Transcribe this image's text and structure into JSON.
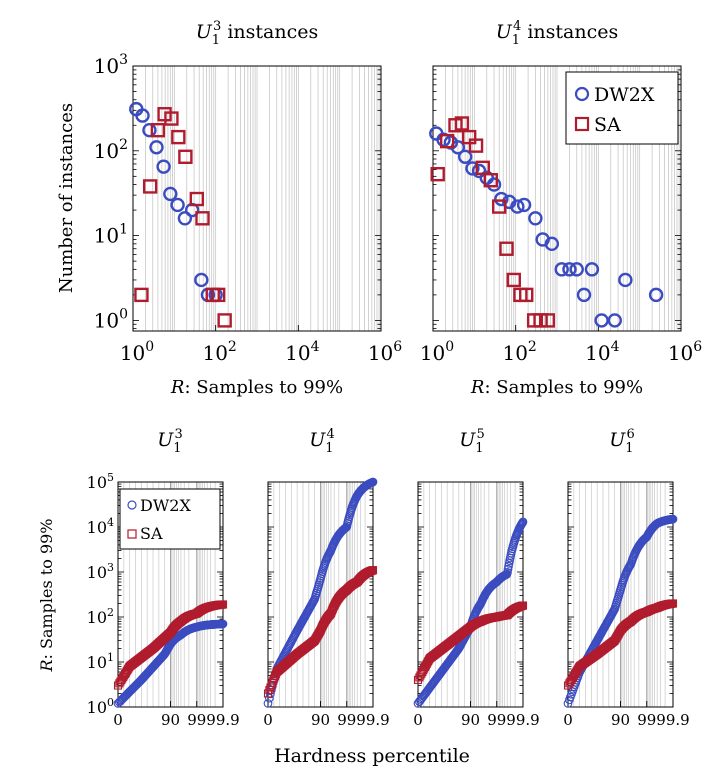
{
  "colors": {
    "dw2x": "#3b4cc0",
    "sa": "#b01c2e",
    "grid": "#c8c8c8",
    "axis": "#000000"
  },
  "chart_data": [
    {
      "id": "hist_u13",
      "type": "scatter",
      "title": {
        "base": "U",
        "sub": "1",
        "sup": "3",
        "suffix": " instances"
      },
      "xlabel": {
        "var": "R",
        "text": ": Samples to 99%"
      },
      "ylabel": "Number of instances",
      "xscale": "log",
      "yscale": "log",
      "xlim": [
        1,
        1000000
      ],
      "ylim": [
        0.75,
        1000
      ],
      "xticks": [
        {
          "value": 1,
          "base": "10",
          "exp": "0"
        },
        {
          "value": 100,
          "base": "10",
          "exp": "2"
        },
        {
          "value": 10000,
          "base": "10",
          "exp": "4"
        },
        {
          "value": 1000000,
          "base": "10",
          "exp": "6"
        }
      ],
      "yticks": [
        {
          "value": 1,
          "base": "10",
          "exp": "0"
        },
        {
          "value": 10,
          "base": "10",
          "exp": "1"
        },
        {
          "value": 100,
          "base": "10",
          "exp": "2"
        },
        {
          "value": 1000,
          "base": "10",
          "exp": "3"
        }
      ],
      "series": [
        {
          "name": "DW2X",
          "marker": "circle",
          "points": [
            [
              1.2,
              310
            ],
            [
              1.7,
              260
            ],
            [
              2.5,
              175
            ],
            [
              3.7,
              110
            ],
            [
              5.5,
              65
            ],
            [
              8,
              31
            ],
            [
              12,
              23
            ],
            [
              18,
              16
            ],
            [
              27,
              20
            ],
            [
              45,
              3
            ],
            [
              65,
              2
            ],
            [
              100,
              2
            ]
          ]
        },
        {
          "name": "SA",
          "marker": "square",
          "points": [
            [
              1.6,
              2
            ],
            [
              2.6,
              38
            ],
            [
              4,
              175
            ],
            [
              5.8,
              270
            ],
            [
              8.5,
              240
            ],
            [
              12.5,
              145
            ],
            [
              18.5,
              85
            ],
            [
              35,
              27
            ],
            [
              48,
              16
            ],
            [
              85,
              2
            ],
            [
              115,
              2
            ],
            [
              165,
              1
            ]
          ]
        }
      ]
    },
    {
      "id": "hist_u14",
      "type": "scatter",
      "title": {
        "base": "U",
        "sub": "1",
        "sup": "4",
        "suffix": " instances"
      },
      "xlabel": {
        "var": "R",
        "text": ": Samples to 99%"
      },
      "ylabel": "",
      "xscale": "log",
      "yscale": "log",
      "xlim": [
        1,
        1000000
      ],
      "ylim": [
        0.75,
        1000
      ],
      "legend": {
        "position": "top-right",
        "entries": [
          "DW2X",
          "SA"
        ]
      },
      "xticks": [
        {
          "value": 1,
          "base": "10",
          "exp": "0"
        },
        {
          "value": 100,
          "base": "10",
          "exp": "2"
        },
        {
          "value": 10000,
          "base": "10",
          "exp": "4"
        },
        {
          "value": 1000000,
          "base": "10",
          "exp": "6"
        }
      ],
      "yticks": [],
      "series": [
        {
          "name": "DW2X",
          "marker": "circle",
          "points": [
            [
              1.2,
              160
            ],
            [
              1.8,
              135
            ],
            [
              2.7,
              125
            ],
            [
              4,
              110
            ],
            [
              6,
              85
            ],
            [
              9,
              62
            ],
            [
              13,
              58
            ],
            [
              20,
              48
            ],
            [
              30,
              40
            ],
            [
              45,
              27
            ],
            [
              70,
              25
            ],
            [
              110,
              22
            ],
            [
              160,
              23
            ],
            [
              300,
              16
            ],
            [
              450,
              9
            ],
            [
              750,
              8
            ],
            [
              1300,
              4
            ],
            [
              2000,
              4
            ],
            [
              3000,
              4
            ],
            [
              4500,
              2
            ],
            [
              7000,
              4
            ],
            [
              12000,
              1
            ],
            [
              25000,
              1
            ],
            [
              45000,
              3
            ],
            [
              250000,
              2
            ]
          ]
        },
        {
          "name": "SA",
          "marker": "square",
          "points": [
            [
              1.3,
              53
            ],
            [
              2.2,
              130
            ],
            [
              3.5,
              200
            ],
            [
              5,
              210
            ],
            [
              7.5,
              145
            ],
            [
              11,
              115
            ],
            [
              16,
              63
            ],
            [
              25,
              45
            ],
            [
              40,
              22
            ],
            [
              60,
              7
            ],
            [
              90,
              3
            ],
            [
              130,
              2
            ],
            [
              180,
              2
            ],
            [
              280,
              1
            ],
            [
              400,
              1
            ],
            [
              600,
              1
            ]
          ]
        }
      ]
    },
    {
      "id": "pct_u13",
      "type": "scatter",
      "title": {
        "base": "U",
        "sub": "1",
        "sup": "3"
      },
      "xlabel": "",
      "ylabel": {
        "var": "R",
        "text": ": Samples to 99%"
      },
      "xscale": "hardness-percentile",
      "yscale": "log",
      "xlim": [
        0,
        99.9
      ],
      "ylim": [
        1,
        100000
      ],
      "legend": {
        "position": "top-right",
        "entries": [
          "DW2X",
          "SA"
        ]
      },
      "xticks": [
        {
          "value": 0,
          "label": "0"
        },
        {
          "value": 90,
          "label": "90"
        },
        {
          "value": 99,
          "label": "99"
        },
        {
          "value": 99.9,
          "label": "99.9"
        }
      ],
      "yticks": [
        {
          "value": 1,
          "base": "10",
          "exp": "0"
        },
        {
          "value": 10,
          "base": "10",
          "exp": "1"
        },
        {
          "value": 100,
          "base": "10",
          "exp": "2"
        },
        {
          "value": 1000,
          "base": "10",
          "exp": "3"
        },
        {
          "value": 10000,
          "base": "10",
          "exp": "4"
        },
        {
          "value": 100000,
          "base": "10",
          "exp": "5"
        }
      ],
      "series": [
        {
          "name": "DW2X",
          "marker": "circle",
          "anchors": [
            [
              0,
              1.2
            ],
            [
              40,
              4
            ],
            [
              80,
              15
            ],
            [
              90,
              25
            ],
            [
              96,
              40
            ],
            [
              99,
              60
            ],
            [
              99.9,
              70
            ]
          ]
        },
        {
          "name": "SA",
          "marker": "square",
          "anchors": [
            [
              0,
              3
            ],
            [
              20,
              8
            ],
            [
              60,
              20
            ],
            [
              90,
              45
            ],
            [
              96,
              80
            ],
            [
              99,
              120
            ],
            [
              99.9,
              190
            ]
          ]
        }
      ]
    },
    {
      "id": "pct_u14",
      "type": "scatter",
      "title": {
        "base": "U",
        "sub": "1",
        "sup": "4"
      },
      "xlabel": "",
      "ylabel": "",
      "xscale": "hardness-percentile",
      "yscale": "log",
      "xlim": [
        0,
        99.9
      ],
      "ylim": [
        1,
        100000
      ],
      "xticks": [
        {
          "value": 0,
          "label": "0"
        },
        {
          "value": 90,
          "label": "90"
        },
        {
          "value": 99,
          "label": "99"
        },
        {
          "value": 99.9,
          "label": "99.9"
        }
      ],
      "yticks": [],
      "series": [
        {
          "name": "DW2X",
          "marker": "circle",
          "anchors": [
            [
              0,
              1.2
            ],
            [
              15,
              7
            ],
            [
              50,
              50
            ],
            [
              80,
              250
            ],
            [
              90,
              700
            ],
            [
              96,
              3000
            ],
            [
              99,
              10000
            ],
            [
              99.6,
              50000
            ],
            [
              99.9,
              100000
            ]
          ]
        },
        {
          "name": "SA",
          "marker": "square",
          "anchors": [
            [
              0,
              2
            ],
            [
              15,
              6
            ],
            [
              50,
              15
            ],
            [
              80,
              30
            ],
            [
              90,
              50
            ],
            [
              96,
              120
            ],
            [
              99,
              400
            ],
            [
              99.6,
              600
            ],
            [
              99.9,
              1100
            ]
          ]
        }
      ]
    },
    {
      "id": "pct_u15",
      "type": "scatter",
      "title": {
        "base": "U",
        "sub": "1",
        "sup": "5"
      },
      "xlabel": "",
      "ylabel": "",
      "xscale": "hardness-percentile",
      "yscale": "log",
      "xlim": [
        0,
        99.9
      ],
      "ylim": [
        1,
        100000
      ],
      "xticks": [
        {
          "value": 0,
          "label": "0"
        },
        {
          "value": 90,
          "label": "90"
        },
        {
          "value": 99,
          "label": "99"
        },
        {
          "value": 99.9,
          "label": "99.9"
        }
      ],
      "yticks": [],
      "series": [
        {
          "name": "DW2X",
          "marker": "circle",
          "anchors": [
            [
              0,
              1.2
            ],
            [
              30,
              4
            ],
            [
              70,
              20
            ],
            [
              90,
              60
            ],
            [
              96,
              200
            ],
            [
              99,
              600
            ],
            [
              99.6,
              900
            ],
            [
              99.9,
              13000
            ]
          ]
        },
        {
          "name": "SA",
          "marker": "square",
          "anchors": [
            [
              0,
              4
            ],
            [
              20,
              12
            ],
            [
              60,
              30
            ],
            [
              90,
              60
            ],
            [
              96,
              80
            ],
            [
              99,
              100
            ],
            [
              99.6,
              110
            ],
            [
              99.9,
              180
            ]
          ]
        }
      ]
    },
    {
      "id": "pct_u16",
      "type": "scatter",
      "title": {
        "base": "U",
        "sub": "1",
        "sup": "6"
      },
      "xlabel": "",
      "ylabel": "",
      "xscale": "hardness-percentile",
      "yscale": "log",
      "xlim": [
        0,
        99.9
      ],
      "ylim": [
        1,
        100000
      ],
      "xticks": [
        {
          "value": 0,
          "label": "0"
        },
        {
          "value": 90,
          "label": "90"
        },
        {
          "value": 99,
          "label": "99"
        },
        {
          "value": 99.9,
          "label": "99.9"
        }
      ],
      "yticks": [],
      "series": [
        {
          "name": "DW2X",
          "marker": "circle",
          "anchors": [
            [
              0,
              1.2
            ],
            [
              20,
              6
            ],
            [
              50,
              30
            ],
            [
              80,
              150
            ],
            [
              90,
              400
            ],
            [
              96,
              1500
            ],
            [
              99,
              6000
            ],
            [
              99.6,
              12000
            ],
            [
              99.9,
              15000
            ]
          ]
        },
        {
          "name": "SA",
          "marker": "square",
          "anchors": [
            [
              0,
              3
            ],
            [
              20,
              8
            ],
            [
              50,
              15
            ],
            [
              80,
              30
            ],
            [
              90,
              50
            ],
            [
              96,
              80
            ],
            [
              99,
              130
            ],
            [
              99.6,
              160
            ],
            [
              99.9,
              200
            ]
          ]
        }
      ]
    }
  ],
  "shared_xlabel": "Hardness percentile"
}
